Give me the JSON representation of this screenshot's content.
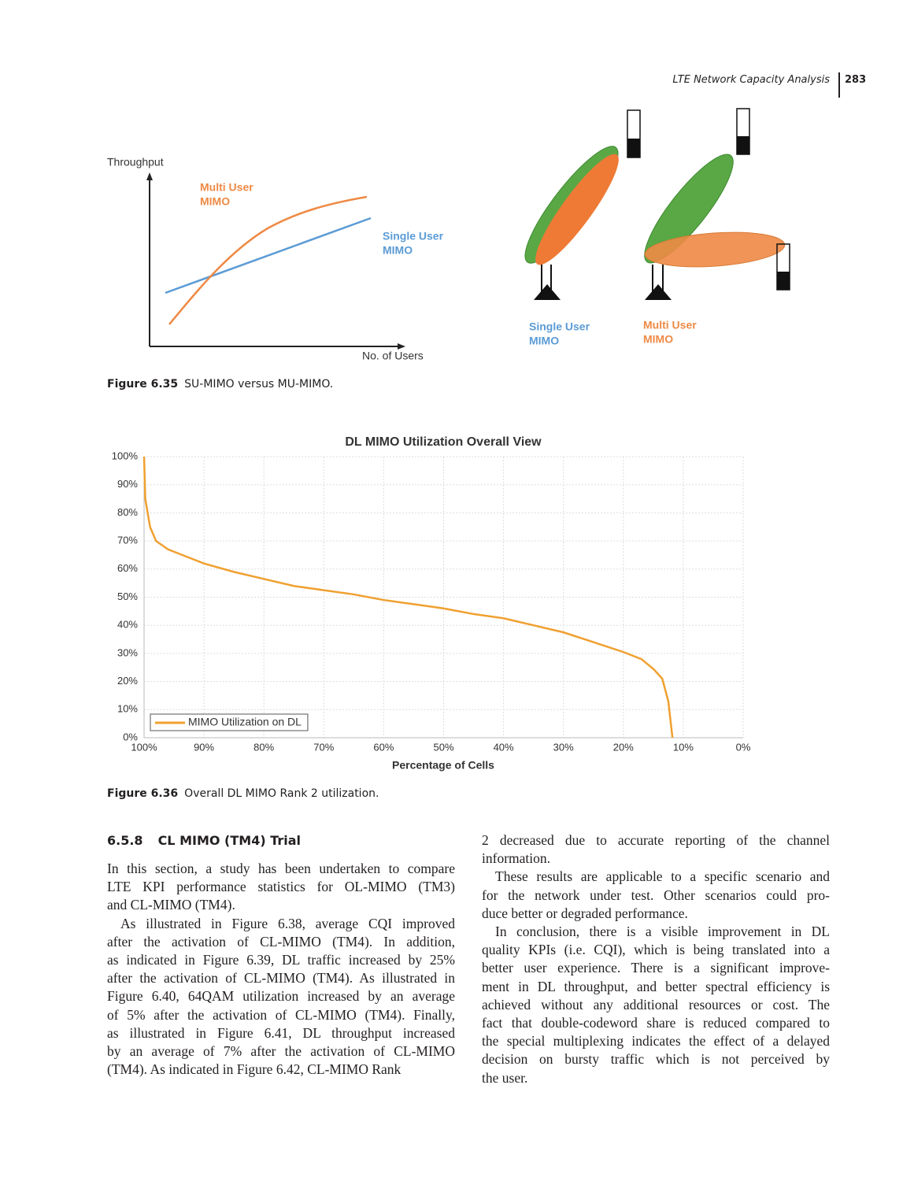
{
  "header": {
    "running_title": "LTE Network Capacity Analysis",
    "page_number": "283"
  },
  "figure_6_35": {
    "y_axis_label": "Throughput",
    "x_axis_label": "No. of Users",
    "multi_user_curve_label": [
      "Multi User",
      "MIMO"
    ],
    "single_user_curve_label": [
      "Single User",
      "MIMO"
    ],
    "single_user_antenna_label": [
      "Single User",
      "MIMO"
    ],
    "multi_user_antenna_label": [
      "Multi User",
      "MIMO"
    ],
    "caption": {
      "number": "Figure 6.35",
      "text": "SU-MIMO versus MU-MIMO."
    }
  },
  "chart_data": {
    "type": "line",
    "title": "DL MIMO Utilization Overall View",
    "x_label": "Percentage of Cells",
    "x": [
      100,
      99.8,
      99,
      98,
      96,
      93,
      90,
      85,
      80,
      75,
      70,
      65,
      60,
      55,
      50,
      45,
      40,
      35,
      30,
      25,
      20,
      17,
      15,
      13.5,
      12.5,
      11.8
    ],
    "series": [
      {
        "name": "MIMO Utilization on DL",
        "color": "#f0a030",
        "values": [
          100,
          85,
          75,
          70,
          67,
          64.5,
          62,
          59,
          56.5,
          54,
          52.5,
          51,
          49,
          47.5,
          46,
          44,
          42.5,
          40,
          37.5,
          34,
          30.5,
          28,
          24.5,
          21,
          13,
          0
        ]
      }
    ],
    "xlim": [
      100,
      0
    ],
    "ylim": [
      0,
      100
    ],
    "xticks": [
      {
        "value": 100,
        "label": "100%"
      },
      {
        "value": 90,
        "label": "90%"
      },
      {
        "value": 80,
        "label": "80%"
      },
      {
        "value": 70,
        "label": "70%"
      },
      {
        "value": 60,
        "label": "60%"
      },
      {
        "value": 50,
        "label": "50%"
      },
      {
        "value": 40,
        "label": "40%"
      },
      {
        "value": 30,
        "label": "30%"
      },
      {
        "value": 20,
        "label": "20%"
      },
      {
        "value": 10,
        "label": "10%"
      },
      {
        "value": 0,
        "label": "0%"
      }
    ],
    "yticks": [
      {
        "value": 0,
        "label": "0%"
      },
      {
        "value": 10,
        "label": "10%"
      },
      {
        "value": 20,
        "label": "20%"
      },
      {
        "value": 30,
        "label": "30%"
      },
      {
        "value": 40,
        "label": "40%"
      },
      {
        "value": 50,
        "label": "50%"
      },
      {
        "value": 60,
        "label": "60%"
      },
      {
        "value": 70,
        "label": "70%"
      },
      {
        "value": 80,
        "label": "80%"
      },
      {
        "value": 90,
        "label": "90%"
      },
      {
        "value": 100,
        "label": "100%"
      }
    ],
    "grid": true,
    "legend": "lower left"
  },
  "figure_6_36_caption": {
    "number": "Figure 6.36",
    "text": "Overall DL MIMO Rank 2 utilization."
  },
  "section": {
    "number": "6.5.8",
    "title": "CL MIMO (TM4) Trial",
    "left_paragraphs": [
      [
        "In this section, a study has been undertaken to compare",
        "LTE KPI performance statistics for OL-MIMO (TM3)",
        "and CL-MIMO (TM4)."
      ],
      [
        "As illustrated in Figure 6.38, average CQI improved",
        "after the activation of CL-MIMO (TM4). In addition,",
        "as indicated in Figure 6.39, DL traffic increased by 25%",
        "after the activation of CL-MIMO (TM4). As illustrated in",
        "Figure 6.40, 64QAM utilization increased by an average",
        "of 5% after the activation of CL-MIMO (TM4). Finally,",
        "as illustrated in Figure 6.41, DL throughput increased",
        "by an average of 7% after the activation of CL-MIMO",
        "(TM4). As indicated in Figure 6.42, CL-MIMO Rank"
      ]
    ],
    "right_paragraphs": [
      [
        "2 decreased due to accurate reporting of the channel",
        "information."
      ],
      [
        "These results are applicable to a specific scenario and",
        "for the network under test. Other scenarios could pro-",
        "duce better or degraded performance."
      ],
      [
        "In conclusion, there is a visible improvement in DL",
        "quality KPIs (i.e. CQI), which is being translated into a",
        "better user experience. There is a significant improve-",
        "ment in DL throughput, and better spectral efficiency is",
        "achieved without any additional resources or cost. The",
        "fact that double-codeword share is reduced compared to",
        "the special multiplexing indicates the effect of a delayed",
        "decision on bursty traffic which is not perceived by",
        "the user."
      ]
    ]
  }
}
